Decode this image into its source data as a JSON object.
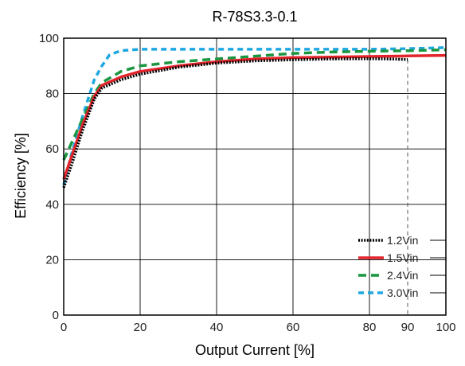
{
  "chart_data": {
    "type": "line",
    "title": "R-78S3.3-0.1",
    "xlabel": "Output Current [%]",
    "ylabel": "Efficiency [%]",
    "xlim": [
      0,
      100
    ],
    "ylim": [
      0,
      100
    ],
    "x_ticks": [
      "0",
      "20",
      "40",
      "60",
      "80",
      "90",
      "100"
    ],
    "x_tick_values": [
      0,
      20,
      40,
      60,
      80,
      90,
      100
    ],
    "y_ticks": [
      "0",
      "20",
      "40",
      "60",
      "80",
      "100"
    ],
    "y_tick_values": [
      0,
      20,
      40,
      60,
      80,
      100
    ],
    "grid": true,
    "marker_line_x": 90,
    "legend_position": "bottom-right",
    "series": [
      {
        "name": "1.2Vin",
        "color": "#000000",
        "style": "dotted",
        "points": [
          [
            0,
            46
          ],
          [
            2,
            54
          ],
          [
            5,
            67
          ],
          [
            8,
            78
          ],
          [
            10,
            82
          ],
          [
            15,
            85
          ],
          [
            20,
            87
          ],
          [
            30,
            89.5
          ],
          [
            40,
            91
          ],
          [
            50,
            91.8
          ],
          [
            60,
            92.2
          ],
          [
            70,
            92.5
          ],
          [
            80,
            92.6
          ],
          [
            85,
            92.5
          ],
          [
            90,
            92.3
          ]
        ]
      },
      {
        "name": "1.5Vin",
        "color": "#e3242b",
        "style": "solid",
        "points": [
          [
            0,
            49
          ],
          [
            2,
            57
          ],
          [
            5,
            69
          ],
          [
            8,
            79
          ],
          [
            10,
            83
          ],
          [
            15,
            86
          ],
          [
            20,
            88
          ],
          [
            30,
            90
          ],
          [
            40,
            91.5
          ],
          [
            50,
            92.5
          ],
          [
            60,
            93
          ],
          [
            70,
            93.2
          ],
          [
            80,
            93.4
          ],
          [
            90,
            93.6
          ],
          [
            100,
            93.8
          ]
        ]
      },
      {
        "name": "2.4Vin",
        "color": "#1a9641",
        "style": "dashed",
        "points": [
          [
            0,
            56
          ],
          [
            2,
            62
          ],
          [
            5,
            71
          ],
          [
            8,
            80
          ],
          [
            10,
            84
          ],
          [
            15,
            88
          ],
          [
            20,
            90
          ],
          [
            30,
            91.5
          ],
          [
            40,
            92.5
          ],
          [
            50,
            93.5
          ],
          [
            60,
            94.5
          ],
          [
            70,
            95
          ],
          [
            80,
            95.3
          ],
          [
            90,
            95.5
          ],
          [
            100,
            95.8
          ]
        ]
      },
      {
        "name": "3.0Vin",
        "color": "#1ea7e1",
        "style": "dashed-short",
        "points": [
          [
            0,
            47
          ],
          [
            2,
            58
          ],
          [
            5,
            72
          ],
          [
            8,
            85
          ],
          [
            10,
            90
          ],
          [
            12,
            94
          ],
          [
            15,
            95.5
          ],
          [
            20,
            96
          ],
          [
            30,
            96
          ],
          [
            40,
            96
          ],
          [
            50,
            96
          ],
          [
            60,
            96
          ],
          [
            70,
            96
          ],
          [
            80,
            96
          ],
          [
            90,
            96.2
          ],
          [
            100,
            96.6
          ]
        ]
      }
    ]
  }
}
